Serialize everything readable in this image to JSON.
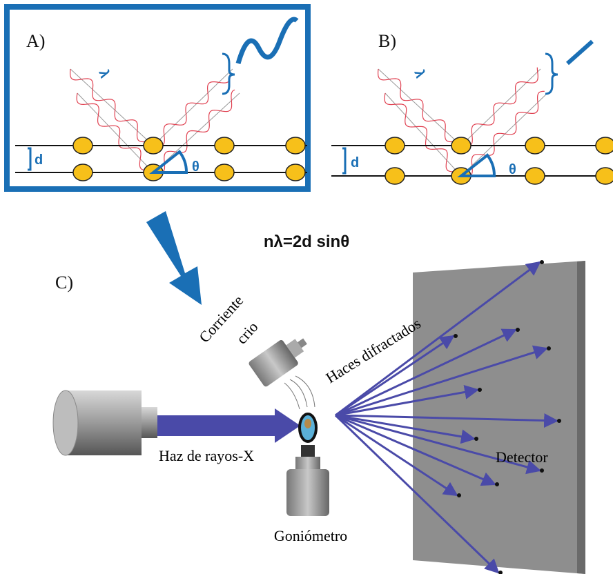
{
  "panels": [
    {
      "label": "A)",
      "wavelength": "λ",
      "spacing": "d",
      "angle": "θ"
    },
    {
      "label": "B)",
      "wavelength": "λ",
      "spacing": "d",
      "angle": "θ"
    }
  ],
  "equation": "nλ=2d sinθ",
  "setup": {
    "label": "C)",
    "cryo_stream": [
      "Corriente",
      "crio"
    ],
    "diffracted_beams": "Haces difractados",
    "xray_beam": "Haz de rayos-X",
    "goniometer": "Goniómetro",
    "detector": "Detector"
  }
}
